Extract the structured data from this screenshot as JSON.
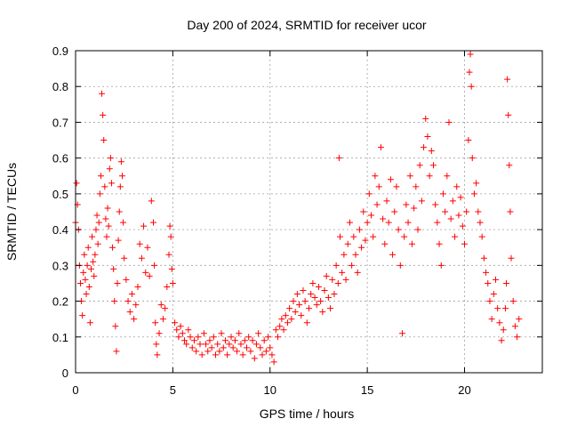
{
  "chart_data": {
    "type": "scatter",
    "title": "Day 200 of 2024, SRMTID for receiver ucor",
    "xlabel": "GPS time / hours",
    "ylabel": "SRMTID / TECUs",
    "xlim": [
      0,
      24
    ],
    "ylim": [
      0,
      0.9
    ],
    "xticks": [
      0,
      5,
      10,
      15,
      20
    ],
    "xtick_labels": [
      "0",
      "5",
      "10",
      "15",
      "20"
    ],
    "yticks": [
      0,
      0.1,
      0.2,
      0.3,
      0.4,
      0.5,
      0.6,
      0.7,
      0.8,
      0.9
    ],
    "ytick_labels": [
      "0",
      "0.1",
      "0.2",
      "0.3",
      "0.4",
      "0.5",
      "0.6",
      "0.7",
      "0.8",
      "0.9"
    ],
    "grid": true,
    "marker": "+",
    "color": "#ff0000",
    "series": [
      {
        "name": "SRMTID",
        "points": [
          [
            0.0,
            0.42
          ],
          [
            0.05,
            0.53
          ],
          [
            0.1,
            0.47
          ],
          [
            0.15,
            0.4
          ],
          [
            0.2,
            0.3
          ],
          [
            0.25,
            0.25
          ],
          [
            0.3,
            0.2
          ],
          [
            0.35,
            0.16
          ],
          [
            0.4,
            0.28
          ],
          [
            0.45,
            0.33
          ],
          [
            0.5,
            0.26
          ],
          [
            0.55,
            0.22
          ],
          [
            0.6,
            0.3
          ],
          [
            0.65,
            0.35
          ],
          [
            0.7,
            0.24
          ],
          [
            0.75,
            0.14
          ],
          [
            0.8,
            0.29
          ],
          [
            0.85,
            0.38
          ],
          [
            0.9,
            0.31
          ],
          [
            0.95,
            0.27
          ],
          [
            1.0,
            0.33
          ],
          [
            1.05,
            0.4
          ],
          [
            1.1,
            0.44
          ],
          [
            1.15,
            0.36
          ],
          [
            1.2,
            0.42
          ],
          [
            1.25,
            0.5
          ],
          [
            1.3,
            0.55
          ],
          [
            1.35,
            0.78
          ],
          [
            1.4,
            0.72
          ],
          [
            1.45,
            0.65
          ],
          [
            1.5,
            0.52
          ],
          [
            1.55,
            0.43
          ],
          [
            1.6,
            0.38
          ],
          [
            1.65,
            0.46
          ],
          [
            1.7,
            0.41
          ],
          [
            1.75,
            0.57
          ],
          [
            1.8,
            0.6
          ],
          [
            1.85,
            0.53
          ],
          [
            1.9,
            0.35
          ],
          [
            1.95,
            0.29
          ],
          [
            2.0,
            0.2
          ],
          [
            2.05,
            0.13
          ],
          [
            2.1,
            0.06
          ],
          [
            2.15,
            0.25
          ],
          [
            2.2,
            0.37
          ],
          [
            2.25,
            0.45
          ],
          [
            2.3,
            0.52
          ],
          [
            2.35,
            0.59
          ],
          [
            2.4,
            0.55
          ],
          [
            2.45,
            0.42
          ],
          [
            2.5,
            0.32
          ],
          [
            2.6,
            0.26
          ],
          [
            2.7,
            0.2
          ],
          [
            2.8,
            0.17
          ],
          [
            2.9,
            0.22
          ],
          [
            3.0,
            0.15
          ],
          [
            3.1,
            0.19
          ],
          [
            3.2,
            0.24
          ],
          [
            3.3,
            0.36
          ],
          [
            3.4,
            0.32
          ],
          [
            3.5,
            0.41
          ],
          [
            3.6,
            0.28
          ],
          [
            3.7,
            0.35
          ],
          [
            3.8,
            0.27
          ],
          [
            3.9,
            0.48
          ],
          [
            4.0,
            0.42
          ],
          [
            4.05,
            0.3
          ],
          [
            4.1,
            0.14
          ],
          [
            4.15,
            0.08
          ],
          [
            4.2,
            0.05
          ],
          [
            4.3,
            0.11
          ],
          [
            4.4,
            0.19
          ],
          [
            4.5,
            0.15
          ],
          [
            4.6,
            0.18
          ],
          [
            4.7,
            0.24
          ],
          [
            4.8,
            0.33
          ],
          [
            4.85,
            0.41
          ],
          [
            4.9,
            0.38
          ],
          [
            4.95,
            0.29
          ],
          [
            5.0,
            0.25
          ],
          [
            5.1,
            0.14
          ],
          [
            5.2,
            0.12
          ],
          [
            5.3,
            0.1
          ],
          [
            5.4,
            0.13
          ],
          [
            5.5,
            0.11
          ],
          [
            5.6,
            0.09
          ],
          [
            5.7,
            0.08
          ],
          [
            5.8,
            0.12
          ],
          [
            5.9,
            0.1
          ],
          [
            6.0,
            0.07
          ],
          [
            6.1,
            0.09
          ],
          [
            6.2,
            0.06
          ],
          [
            6.3,
            0.1
          ],
          [
            6.4,
            0.08
          ],
          [
            6.5,
            0.05
          ],
          [
            6.6,
            0.11
          ],
          [
            6.7,
            0.08
          ],
          [
            6.8,
            0.06
          ],
          [
            6.9,
            0.09
          ],
          [
            7.0,
            0.07
          ],
          [
            7.1,
            0.1
          ],
          [
            7.2,
            0.05
          ],
          [
            7.3,
            0.08
          ],
          [
            7.4,
            0.06
          ],
          [
            7.5,
            0.11
          ],
          [
            7.6,
            0.07
          ],
          [
            7.7,
            0.09
          ],
          [
            7.8,
            0.05
          ],
          [
            7.9,
            0.08
          ],
          [
            8.0,
            0.1
          ],
          [
            8.1,
            0.07
          ],
          [
            8.2,
            0.09
          ],
          [
            8.3,
            0.06
          ],
          [
            8.4,
            0.11
          ],
          [
            8.5,
            0.08
          ],
          [
            8.6,
            0.05
          ],
          [
            8.7,
            0.09
          ],
          [
            8.8,
            0.07
          ],
          [
            8.9,
            0.1
          ],
          [
            9.0,
            0.06
          ],
          [
            9.1,
            0.09
          ],
          [
            9.2,
            0.04
          ],
          [
            9.3,
            0.08
          ],
          [
            9.4,
            0.11
          ],
          [
            9.5,
            0.07
          ],
          [
            9.6,
            0.05
          ],
          [
            9.7,
            0.09
          ],
          [
            9.8,
            0.06
          ],
          [
            9.9,
            0.1
          ],
          [
            10.0,
            0.07
          ],
          [
            10.1,
            0.05
          ],
          [
            10.2,
            0.03
          ],
          [
            10.3,
            0.12
          ],
          [
            10.4,
            0.1
          ],
          [
            10.5,
            0.13
          ],
          [
            10.6,
            0.15
          ],
          [
            10.7,
            0.12
          ],
          [
            10.8,
            0.16
          ],
          [
            10.9,
            0.14
          ],
          [
            11.0,
            0.18
          ],
          [
            11.1,
            0.15
          ],
          [
            11.2,
            0.2
          ],
          [
            11.3,
            0.17
          ],
          [
            11.4,
            0.22
          ],
          [
            11.5,
            0.19
          ],
          [
            11.6,
            0.16
          ],
          [
            11.7,
            0.23
          ],
          [
            11.8,
            0.2
          ],
          [
            11.9,
            0.14
          ],
          [
            12.0,
            0.18
          ],
          [
            12.1,
            0.22
          ],
          [
            12.2,
            0.25
          ],
          [
            12.3,
            0.21
          ],
          [
            12.4,
            0.19
          ],
          [
            12.5,
            0.24
          ],
          [
            12.6,
            0.2
          ],
          [
            12.7,
            0.17
          ],
          [
            12.8,
            0.23
          ],
          [
            12.9,
            0.27
          ],
          [
            13.0,
            0.21
          ],
          [
            13.1,
            0.18
          ],
          [
            13.2,
            0.26
          ],
          [
            13.3,
            0.22
          ],
          [
            13.4,
            0.3
          ],
          [
            13.5,
            0.25
          ],
          [
            13.55,
            0.6
          ],
          [
            13.6,
            0.38
          ],
          [
            13.7,
            0.28
          ],
          [
            13.8,
            0.33
          ],
          [
            13.9,
            0.26
          ],
          [
            14.0,
            0.36
          ],
          [
            14.1,
            0.42
          ],
          [
            14.2,
            0.3
          ],
          [
            14.3,
            0.38
          ],
          [
            14.4,
            0.33
          ],
          [
            14.5,
            0.28
          ],
          [
            14.6,
            0.4
          ],
          [
            14.7,
            0.35
          ],
          [
            14.8,
            0.45
          ],
          [
            14.9,
            0.37
          ],
          [
            15.0,
            0.42
          ],
          [
            15.1,
            0.5
          ],
          [
            15.2,
            0.44
          ],
          [
            15.3,
            0.38
          ],
          [
            15.4,
            0.55
          ],
          [
            15.5,
            0.47
          ],
          [
            15.6,
            0.52
          ],
          [
            15.7,
            0.63
          ],
          [
            15.8,
            0.43
          ],
          [
            15.9,
            0.36
          ],
          [
            16.0,
            0.48
          ],
          [
            16.1,
            0.42
          ],
          [
            16.2,
            0.54
          ],
          [
            16.3,
            0.33
          ],
          [
            16.4,
            0.45
          ],
          [
            16.5,
            0.52
          ],
          [
            16.6,
            0.4
          ],
          [
            16.7,
            0.3
          ],
          [
            16.8,
            0.11
          ],
          [
            16.9,
            0.38
          ],
          [
            17.0,
            0.47
          ],
          [
            17.1,
            0.42
          ],
          [
            17.2,
            0.55
          ],
          [
            17.3,
            0.36
          ],
          [
            17.4,
            0.46
          ],
          [
            17.5,
            0.52
          ],
          [
            17.6,
            0.4
          ],
          [
            17.7,
            0.58
          ],
          [
            17.8,
            0.48
          ],
          [
            17.9,
            0.63
          ],
          [
            18.0,
            0.71
          ],
          [
            18.1,
            0.66
          ],
          [
            18.2,
            0.55
          ],
          [
            18.3,
            0.62
          ],
          [
            18.4,
            0.58
          ],
          [
            18.5,
            0.47
          ],
          [
            18.6,
            0.42
          ],
          [
            18.7,
            0.36
          ],
          [
            18.8,
            0.3
          ],
          [
            18.9,
            0.5
          ],
          [
            19.0,
            0.45
          ],
          [
            19.1,
            0.55
          ],
          [
            19.2,
            0.7
          ],
          [
            19.3,
            0.43
          ],
          [
            19.4,
            0.48
          ],
          [
            19.5,
            0.38
          ],
          [
            19.6,
            0.52
          ],
          [
            19.7,
            0.44
          ],
          [
            19.8,
            0.49
          ],
          [
            19.9,
            0.41
          ],
          [
            20.0,
            0.36
          ],
          [
            20.1,
            0.45
          ],
          [
            20.2,
            0.65
          ],
          [
            20.25,
            0.84
          ],
          [
            20.3,
            0.89
          ],
          [
            20.35,
            0.8
          ],
          [
            20.4,
            0.6
          ],
          [
            20.5,
            0.5
          ],
          [
            20.6,
            0.53
          ],
          [
            20.7,
            0.45
          ],
          [
            20.8,
            0.42
          ],
          [
            20.9,
            0.38
          ],
          [
            21.0,
            0.32
          ],
          [
            21.1,
            0.28
          ],
          [
            21.2,
            0.25
          ],
          [
            21.3,
            0.2
          ],
          [
            21.4,
            0.15
          ],
          [
            21.5,
            0.22
          ],
          [
            21.6,
            0.26
          ],
          [
            21.7,
            0.18
          ],
          [
            21.8,
            0.14
          ],
          [
            21.9,
            0.09
          ],
          [
            22.0,
            0.12
          ],
          [
            22.1,
            0.18
          ],
          [
            22.15,
            0.25
          ],
          [
            22.2,
            0.82
          ],
          [
            22.25,
            0.72
          ],
          [
            22.3,
            0.58
          ],
          [
            22.35,
            0.45
          ],
          [
            22.4,
            0.32
          ],
          [
            22.5,
            0.2
          ],
          [
            22.6,
            0.13
          ],
          [
            22.7,
            0.1
          ],
          [
            22.8,
            0.15
          ]
        ]
      }
    ]
  }
}
